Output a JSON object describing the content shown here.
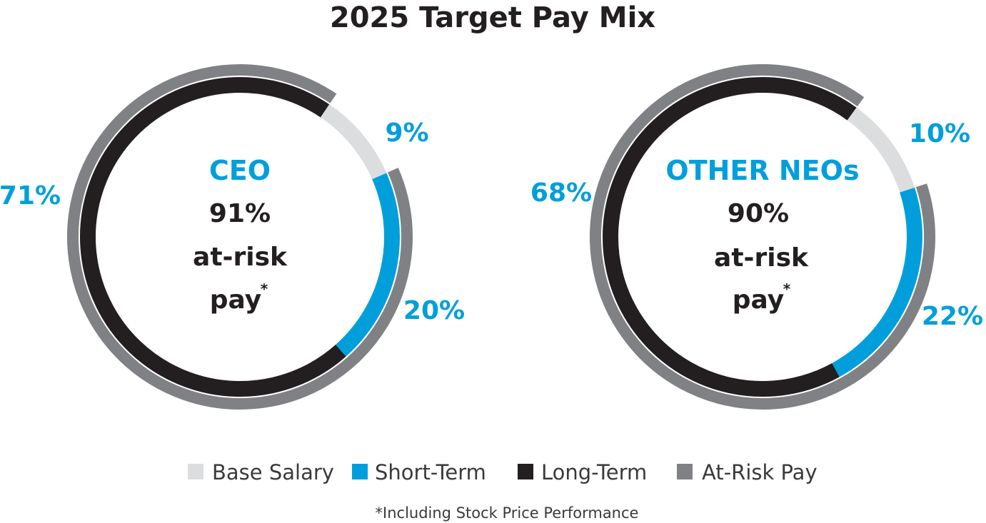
{
  "chart_data": {
    "type": "pie",
    "title": "2025 Target Pay Mix",
    "colors": {
      "base_salary": "#dcdddf",
      "short_term": "#009fdb",
      "long_term": "#231f20",
      "at_risk": "#808184",
      "accent_text": "#009fdb"
    },
    "legend": {
      "placement": "bottom",
      "items": [
        {
          "key": "base_salary",
          "label": "Base Salary",
          "color": "#dcdddf"
        },
        {
          "key": "short_term",
          "label": "Short-Term",
          "color": "#009fdb"
        },
        {
          "key": "long_term",
          "label": "Long-Term",
          "color": "#231f20"
        },
        {
          "key": "at_risk",
          "label": "At-Risk Pay",
          "color": "#808184"
        }
      ]
    },
    "charts": [
      {
        "name": "CEO",
        "at_risk_percent": "91%",
        "at_risk_line1": "at-risk",
        "at_risk_line2": "pay",
        "at_risk_mark": "*",
        "slices": [
          {
            "key": "base_salary",
            "label": "Base Salary",
            "value": 9,
            "value_label": "9%"
          },
          {
            "key": "short_term",
            "label": "Short-Term",
            "value": 20,
            "value_label": "20%"
          },
          {
            "key": "long_term",
            "label": "Long-Term",
            "value": 71,
            "value_label": "71%"
          }
        ],
        "at_risk_value": 91
      },
      {
        "name": "OTHER NEOs",
        "at_risk_percent": "90%",
        "at_risk_line1": "at-risk",
        "at_risk_line2": "pay",
        "at_risk_mark": "*",
        "slices": [
          {
            "key": "base_salary",
            "label": "Base Salary",
            "value": 10,
            "value_label": "10%"
          },
          {
            "key": "short_term",
            "label": "Short-Term",
            "value": 22,
            "value_label": "22%"
          },
          {
            "key": "long_term",
            "label": "Long-Term",
            "value": 68,
            "value_label": "68%"
          }
        ],
        "at_risk_value": 90
      }
    ],
    "footnote": "*Including Stock Price Performance"
  }
}
